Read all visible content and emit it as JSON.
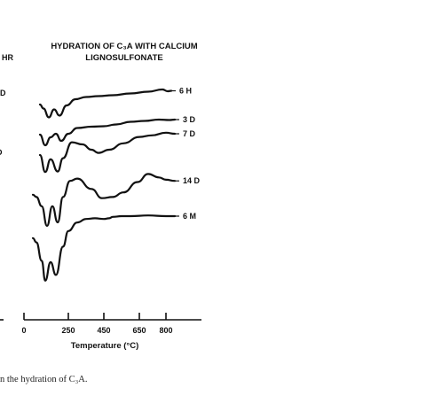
{
  "chart_data": {
    "type": "line",
    "title_lines": [
      "HYDRATION OF C₃A WITH CALCIUM",
      "LIGNOSULFONATE"
    ],
    "xlabel": "Temperature (°C)",
    "ylabel": "",
    "x_ticks": [
      0,
      250,
      450,
      650,
      800
    ],
    "x_range": [
      0,
      1000
    ],
    "grid": false,
    "series": [
      {
        "name": "6 H",
        "x": [
          90,
          110,
          140,
          170,
          200,
          240,
          290,
          350,
          420,
          500,
          600,
          700,
          780,
          810,
          830
        ],
        "y": [
          0.0,
          -0.45,
          -1.45,
          -0.55,
          -1.25,
          -0.1,
          0.6,
          0.85,
          0.95,
          1.05,
          1.25,
          1.45,
          1.7,
          1.5,
          1.55
        ]
      },
      {
        "name": "3 D",
        "x": [
          90,
          120,
          150,
          180,
          210,
          250,
          300,
          380,
          450,
          520,
          600,
          680,
          760,
          820,
          850
        ],
        "y": [
          -0.2,
          -1.4,
          -0.5,
          -0.1,
          -0.9,
          -0.1,
          0.55,
          0.7,
          0.75,
          0.95,
          1.25,
          1.35,
          1.5,
          1.45,
          1.5
        ]
      },
      {
        "name": "7 D",
        "x": [
          90,
          120,
          150,
          190,
          220,
          270,
          330,
          380,
          420,
          480,
          560,
          650,
          720,
          800,
          850
        ],
        "y": [
          0.0,
          -1.6,
          -0.4,
          -1.55,
          -0.3,
          1.2,
          1.0,
          0.5,
          0.2,
          0.5,
          1.1,
          1.7,
          1.85,
          2.1,
          2.0
        ]
      },
      {
        "name": "14 D",
        "x": [
          50,
          70,
          100,
          130,
          160,
          190,
          220,
          260,
          300,
          380,
          440,
          500,
          560,
          640,
          700,
          760,
          800,
          850
        ],
        "y": [
          0.4,
          0.2,
          -0.6,
          -2.3,
          -0.6,
          -2.0,
          0.2,
          1.6,
          1.8,
          0.9,
          0.1,
          0.2,
          0.6,
          1.5,
          2.2,
          1.9,
          1.7,
          1.6
        ]
      },
      {
        "name": "6 M",
        "x": [
          50,
          70,
          100,
          120,
          150,
          180,
          220,
          250,
          300,
          350,
          400,
          450,
          480,
          500,
          550,
          600,
          700,
          800,
          850
        ],
        "y": [
          1.2,
          0.9,
          -0.4,
          -1.8,
          -0.5,
          -1.4,
          0.6,
          1.7,
          2.3,
          2.55,
          2.6,
          2.55,
          2.6,
          2.7,
          2.75,
          2.75,
          2.8,
          2.75,
          2.75
        ]
      }
    ]
  },
  "left_edge_labels": [
    "HR",
    "D",
    "D"
  ],
  "caption_text": "n the hydration of C₃A.",
  "colors": {
    "ink": "#111111",
    "background": "#ffffff"
  }
}
